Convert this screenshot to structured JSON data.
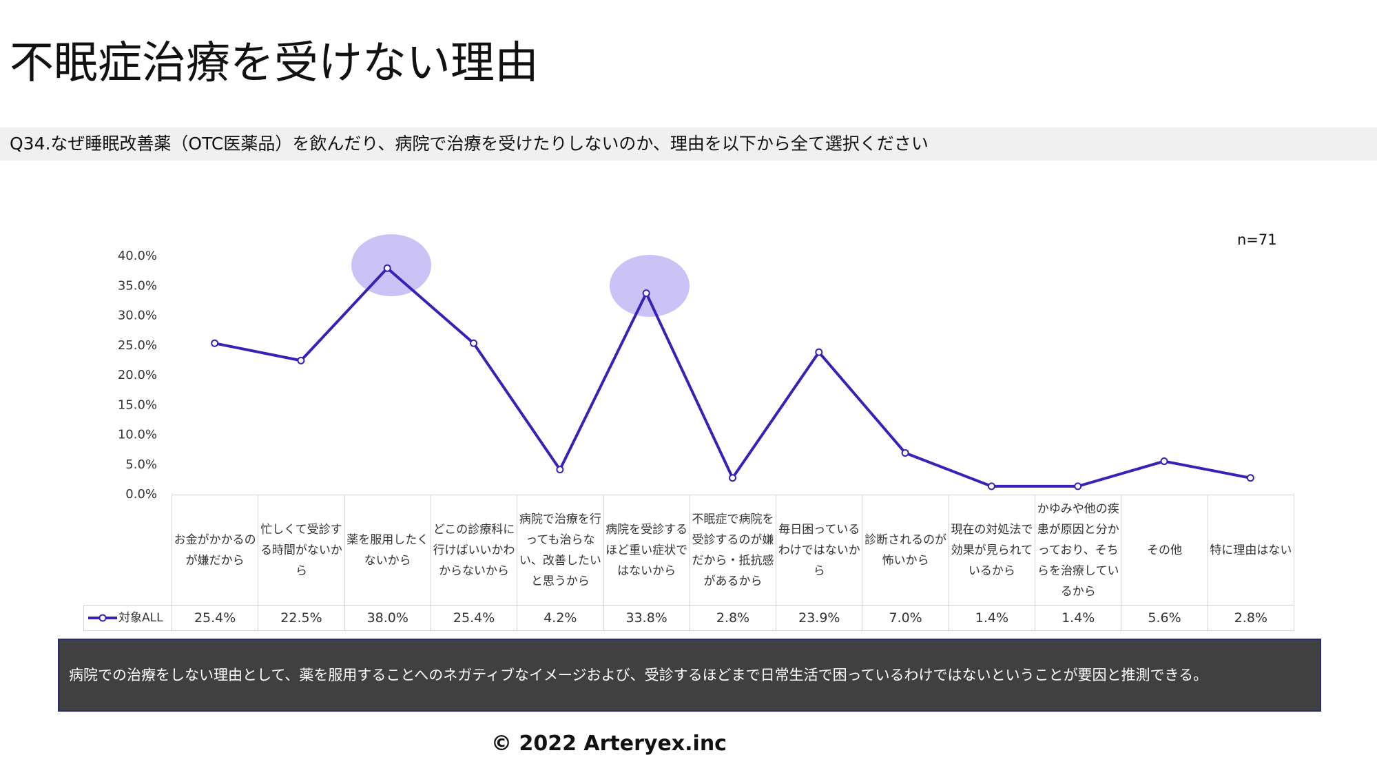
{
  "header": {
    "title": "不眠症治療を受けない理由",
    "question": "Q34.なぜ睡眠改善薬（OTC医薬品）を飲んだり、病院で治療を受けたりしないのか、理由を以下から全て選択ください"
  },
  "chart_data": {
    "type": "line",
    "note": "n=71",
    "categories": [
      "お金がかかるのが嫌だから",
      "忙しくて受診する時間がないから",
      "薬を服用したくないから",
      "どこの診療科に行けばいいかわからないから",
      "病院で治療を行っても治らない、改善したいと思うから",
      "病院を受診するほど重い症状ではないから",
      "不眠症で病院を受診するのが嫌だから・抵抗感があるから",
      "毎日困っているわけではないから",
      "診断されるのが怖いから",
      "現在の対処法で効果が見られているから",
      "かゆみや他の疾患が原因と分かっており、そちらを治療しているから",
      "その他",
      "特に理由はない"
    ],
    "series": [
      {
        "name": "対象ALL",
        "color": "#3a1fb8",
        "values": [
          25.4,
          22.5,
          38.0,
          25.4,
          4.2,
          33.8,
          2.8,
          23.9,
          7.0,
          1.4,
          1.4,
          5.6,
          2.8
        ],
        "value_labels": [
          "25.4%",
          "22.5%",
          "38.0%",
          "25.4%",
          "4.2%",
          "33.8%",
          "2.8%",
          "23.9%",
          "7.0%",
          "1.4%",
          "1.4%",
          "5.6%",
          "2.8%"
        ]
      }
    ],
    "ylim": [
      0,
      40
    ],
    "yticks": [
      {
        "value": 0,
        "label": "0.0%"
      },
      {
        "value": 5,
        "label": "5.0%"
      },
      {
        "value": 10,
        "label": "10.0%"
      },
      {
        "value": 15,
        "label": "15.0%"
      },
      {
        "value": 20,
        "label": "20.0%"
      },
      {
        "value": 25,
        "label": "25.0%"
      },
      {
        "value": 30,
        "label": "30.0%"
      },
      {
        "value": 35,
        "label": "35.0%"
      },
      {
        "value": 40,
        "label": "40.0%"
      }
    ],
    "grid": false
  },
  "summary": "病院での治療をしない理由として、薬を服用することへのネガティブなイメージおよび、受診するほどまで日常生活で困っているわけではないということが要因と推測できる。",
  "footer": "©  2022 Arteryex.inc"
}
